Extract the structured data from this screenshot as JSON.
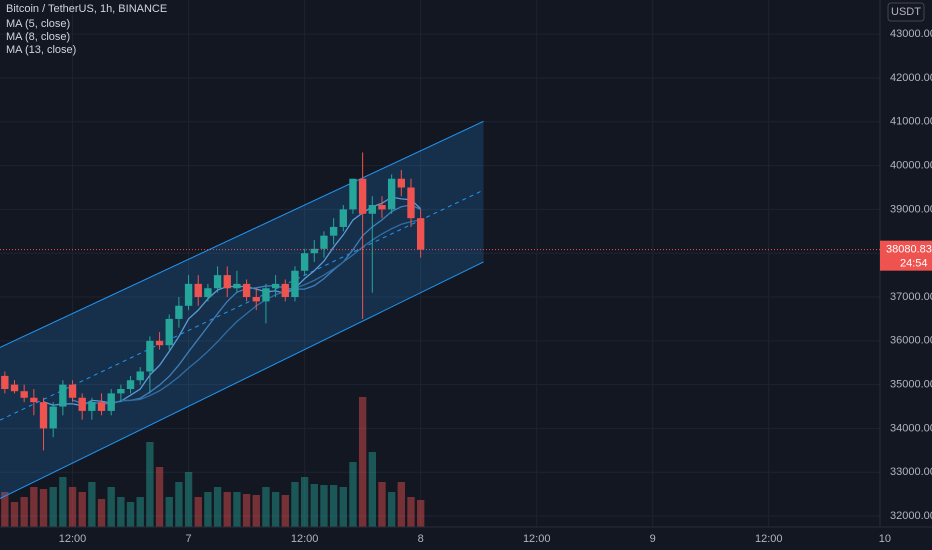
{
  "chart_data": {
    "type": "candlestick",
    "title": "Bitcoin / TetherUS, 1h, BINANCE",
    "currency": "USDT",
    "x": [
      0,
      1,
      2,
      3,
      4,
      5,
      6,
      7,
      8,
      9,
      10,
      11,
      12,
      13,
      14,
      15,
      16,
      17,
      18,
      19,
      20,
      21,
      22,
      23,
      24,
      25,
      26,
      27,
      28,
      29,
      30,
      31,
      32,
      33,
      34,
      35,
      36,
      37,
      38,
      39,
      40,
      41,
      42,
      43
    ],
    "open": [
      35200,
      35000,
      34850,
      34700,
      34600,
      34000,
      34500,
      35000,
      34700,
      34400,
      34600,
      34400,
      34800,
      34900,
      35100,
      35300,
      36000,
      35900,
      36500,
      36800,
      37300,
      37000,
      37200,
      37500,
      37200,
      37300,
      37000,
      36900,
      37200,
      37300,
      37000,
      37600,
      38000,
      38100,
      38400,
      38600,
      39000,
      39700,
      38900,
      39100,
      39000,
      39700,
      39500,
      38800
    ],
    "high": [
      35300,
      35100,
      35000,
      34900,
      34700,
      34600,
      35100,
      35100,
      34800,
      34700,
      34800,
      34900,
      35000,
      35200,
      35400,
      36100,
      36200,
      36600,
      37000,
      37500,
      37500,
      37300,
      37700,
      37700,
      37600,
      37400,
      37200,
      37300,
      37500,
      37400,
      37700,
      38100,
      38300,
      38500,
      38800,
      39100,
      39700,
      40300,
      39300,
      39300,
      39800,
      39900,
      39700,
      39000
    ],
    "low": [
      34800,
      34800,
      34600,
      34300,
      33500,
      33800,
      34300,
      34600,
      34200,
      34200,
      34300,
      34300,
      34600,
      34800,
      35000,
      34800,
      35800,
      35800,
      36300,
      36700,
      36800,
      36900,
      37100,
      37000,
      37100,
      36900,
      36700,
      36400,
      37000,
      36900,
      36900,
      37500,
      37800,
      37900,
      38200,
      38500,
      38900,
      36500,
      37100,
      38800,
      38900,
      39300,
      38600,
      37900
    ],
    "close": [
      34900,
      34850,
      34700,
      34600,
      34000,
      34500,
      35000,
      34700,
      34400,
      34600,
      34400,
      34800,
      34900,
      35100,
      35300,
      36000,
      35900,
      36500,
      36800,
      37300,
      37000,
      37200,
      37500,
      37200,
      37300,
      37000,
      36900,
      37200,
      37300,
      37000,
      37600,
      38000,
      38100,
      38400,
      38600,
      39000,
      39700,
      38900,
      39100,
      39000,
      39700,
      39500,
      38800,
      38080
    ],
    "volume": [
      35,
      25,
      30,
      40,
      38,
      40,
      50,
      40,
      35,
      45,
      28,
      40,
      30,
      25,
      30,
      85,
      60,
      30,
      45,
      55,
      30,
      35,
      40,
      35,
      35,
      33,
      32,
      40,
      35,
      32,
      45,
      50,
      43,
      42,
      42,
      40,
      65,
      130,
      75,
      45,
      35,
      45,
      30,
      27
    ],
    "volume_lim": [
      0,
      140
    ],
    "up_color": "#26a69a",
    "down_color": "#ef5350",
    "series": [
      {
        "name": "MA (5, close)",
        "color": "#5b9bd5",
        "values": [
          null,
          null,
          null,
          null,
          34610,
          34530,
          34560,
          34560,
          34520,
          34640,
          34620,
          34580,
          34620,
          34760,
          34900,
          35220,
          35440,
          35760,
          36100,
          36500,
          36700,
          36960,
          37160,
          37240,
          37240,
          37240,
          37180,
          37120,
          37140,
          37080,
          37200,
          37420,
          37600,
          37820,
          38140,
          38420,
          38760,
          38920,
          39060,
          39140,
          39280,
          39240,
          39220,
          39016
        ]
      },
      {
        "name": "MA (8, close)",
        "color": "#3f7fb8",
        "values": [
          null,
          null,
          null,
          null,
          null,
          null,
          null,
          34650,
          34570,
          34590,
          34570,
          34560,
          34630,
          34640,
          34690,
          34830,
          34990,
          35190,
          35450,
          35750,
          36040,
          36330,
          36620,
          36900,
          37110,
          37190,
          37210,
          37250,
          37260,
          37200,
          37180,
          37180,
          37260,
          37420,
          37620,
          37800,
          38080,
          38400,
          38600,
          38760,
          38950,
          39060,
          39100,
          39000
        ]
      },
      {
        "name": "MA (13, close)",
        "color": "#2f6ea3",
        "values": [
          null,
          null,
          null,
          null,
          null,
          null,
          null,
          null,
          null,
          null,
          null,
          null,
          34640,
          34640,
          34660,
          34750,
          34860,
          35010,
          35180,
          35380,
          35560,
          35760,
          35980,
          36220,
          36440,
          36620,
          36800,
          36940,
          37050,
          37130,
          37200,
          37280,
          37380,
          37500,
          37640,
          37800,
          37960,
          38140,
          38300,
          38440,
          38560,
          38660,
          38720,
          38760
        ]
      }
    ],
    "channel": {
      "x": [
        -0.5,
        49.5
      ],
      "upper": [
        35850,
        41010
      ],
      "middle": [
        34190,
        39440
      ],
      "lower": [
        32400,
        37800
      ],
      "color": "#2196f3"
    },
    "last_price": 38080.83,
    "countdown": "24:54",
    "xlim": [
      -0.5,
      90.5
    ],
    "xticks": [
      {
        "value": 7,
        "label": "12:00"
      },
      {
        "value": 19,
        "label": "7"
      },
      {
        "value": 31,
        "label": "12:00"
      },
      {
        "value": 43,
        "label": "8"
      },
      {
        "value": 55,
        "label": "12:00"
      },
      {
        "value": 67,
        "label": "9"
      },
      {
        "value": 79,
        "label": "12:00"
      },
      {
        "value": 91,
        "label": "10"
      }
    ],
    "ylim": [
      31750,
      43780
    ],
    "yticks": [
      {
        "value": 32000,
        "label": "32000.00"
      },
      {
        "value": 33000,
        "label": "33000.00"
      },
      {
        "value": 34000,
        "label": "34000.00"
      },
      {
        "value": 35000,
        "label": "35000.00"
      },
      {
        "value": 36000,
        "label": "36000.00"
      },
      {
        "value": 37000,
        "label": "37000.00"
      },
      {
        "value": 38000,
        "label": "38000.00"
      },
      {
        "value": 39000,
        "label": "39000.00"
      },
      {
        "value": 40000,
        "label": "40000.00"
      },
      {
        "value": 41000,
        "label": "41000.00"
      },
      {
        "value": 42000,
        "label": "42000.00"
      },
      {
        "value": 43000,
        "label": "43000.00"
      }
    ],
    "grid": true
  }
}
